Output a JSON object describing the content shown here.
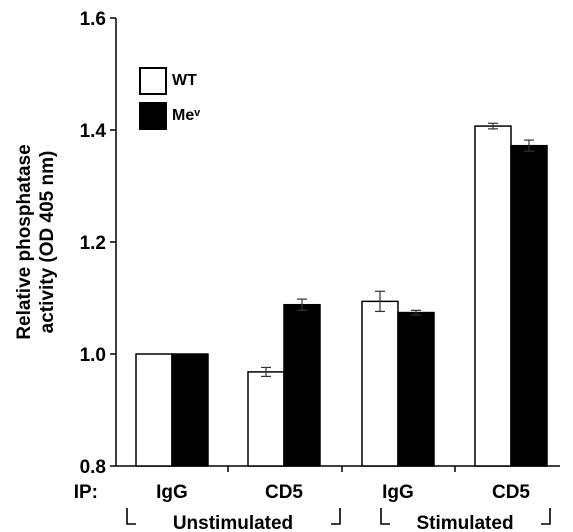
{
  "chart_data": {
    "type": "bar",
    "ylabel_lines": [
      "Relative phosphatase",
      "activity (OD 405 nm)"
    ],
    "ylim": [
      0.8,
      1.6
    ],
    "yticks": [
      "0.8",
      "1.0",
      "1.2",
      "1.4",
      "1.6"
    ],
    "ytick_values": [
      0.8,
      1.0,
      1.2,
      1.4,
      1.6
    ],
    "ip_label": "IP:",
    "categories": [
      "IgG",
      "CD5",
      "IgG",
      "CD5"
    ],
    "groups": [
      {
        "label": "Unstimulated",
        "span": [
          0,
          1
        ]
      },
      {
        "label": "Stimulated",
        "span": [
          2,
          3
        ]
      }
    ],
    "series": [
      {
        "name": "WT",
        "color": "#ffffff",
        "values": [
          1.0,
          0.968,
          1.094,
          1.407
        ],
        "errors": [
          0.0,
          0.008,
          0.018,
          0.005
        ]
      },
      {
        "name": "Meᵛ",
        "color": "#000000",
        "values": [
          1.0,
          1.088,
          1.074,
          1.372
        ],
        "errors": [
          0.0,
          0.01,
          0.004,
          0.01
        ]
      }
    ],
    "legend_position": "top-left",
    "grid": false
  }
}
